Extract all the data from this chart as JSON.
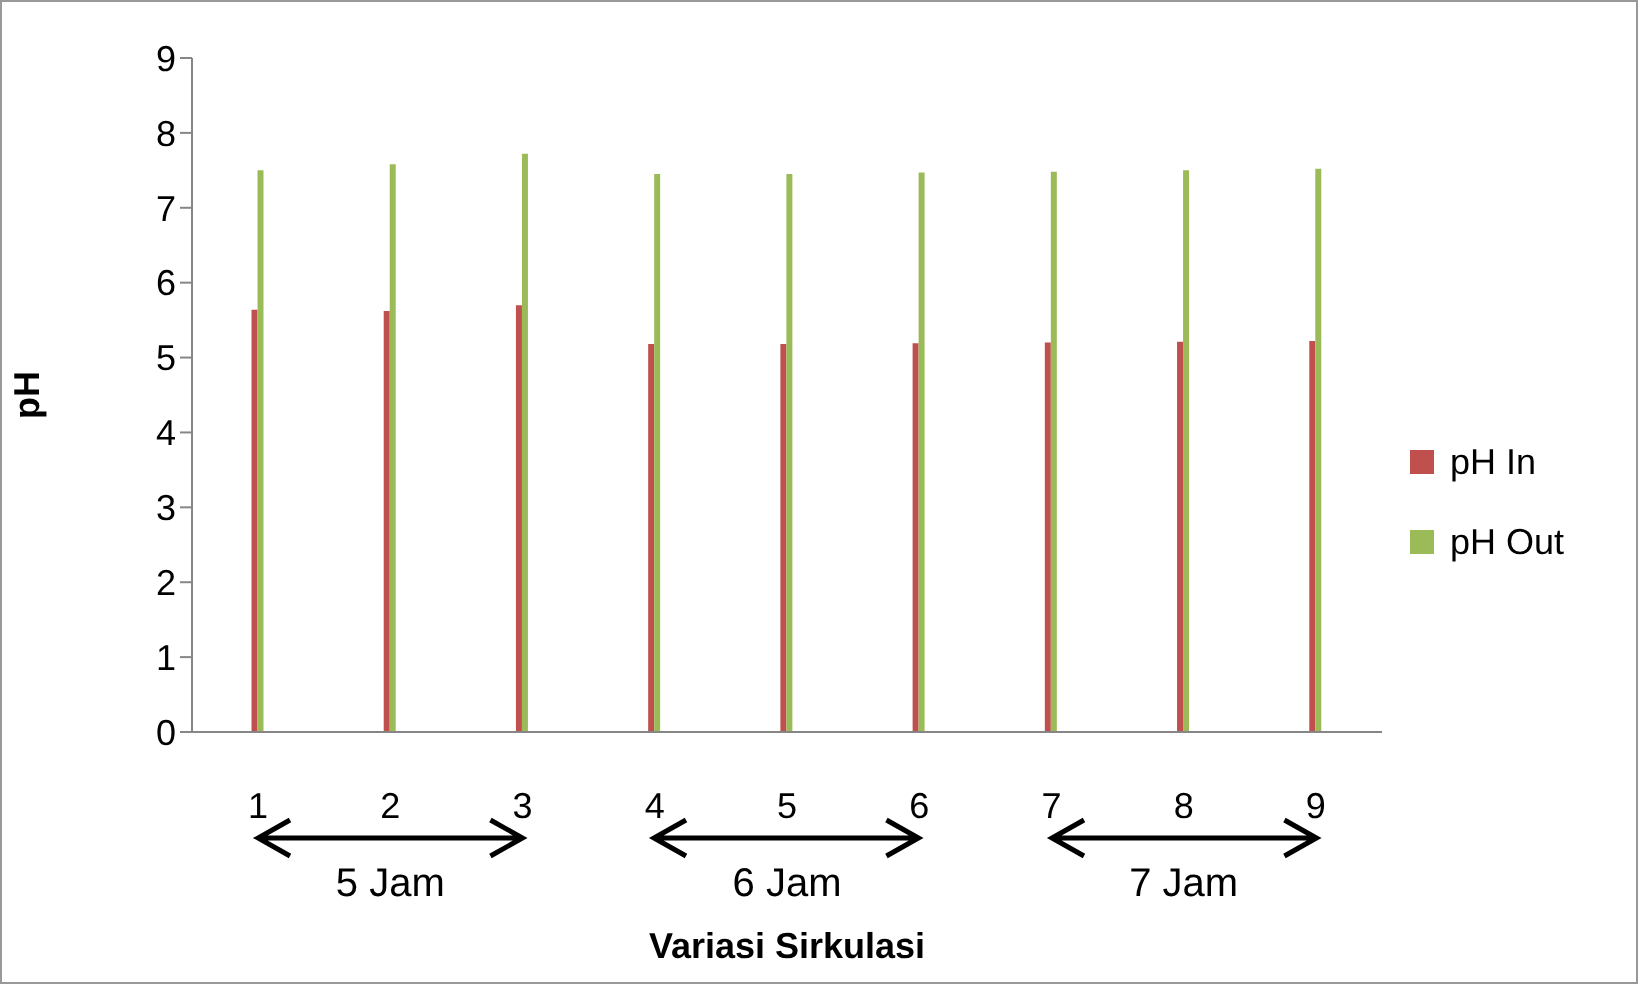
{
  "chart_data": {
    "type": "bar",
    "xlabel": "Variasi Sirkulasi",
    "ylabel": "pH",
    "categories": [
      "1",
      "2",
      "3",
      "4",
      "5",
      "6",
      "7",
      "8",
      "9"
    ],
    "series": [
      {
        "name": "pH In",
        "color": "#c0504d",
        "values": [
          5.64,
          5.62,
          5.7,
          5.18,
          5.18,
          5.19,
          5.2,
          5.21,
          5.22
        ]
      },
      {
        "name": "pH Out",
        "color": "#9bbb59",
        "values": [
          7.5,
          7.58,
          7.72,
          7.45,
          7.45,
          7.47,
          7.48,
          7.5,
          7.52
        ]
      }
    ],
    "ylim": [
      0,
      9
    ],
    "yticks": [
      0,
      1,
      2,
      3,
      4,
      5,
      6,
      7,
      8,
      9
    ],
    "grid": false,
    "legend": "right",
    "annotations": [
      "5 Jam",
      "6 Jam",
      "7 Jam"
    ]
  }
}
